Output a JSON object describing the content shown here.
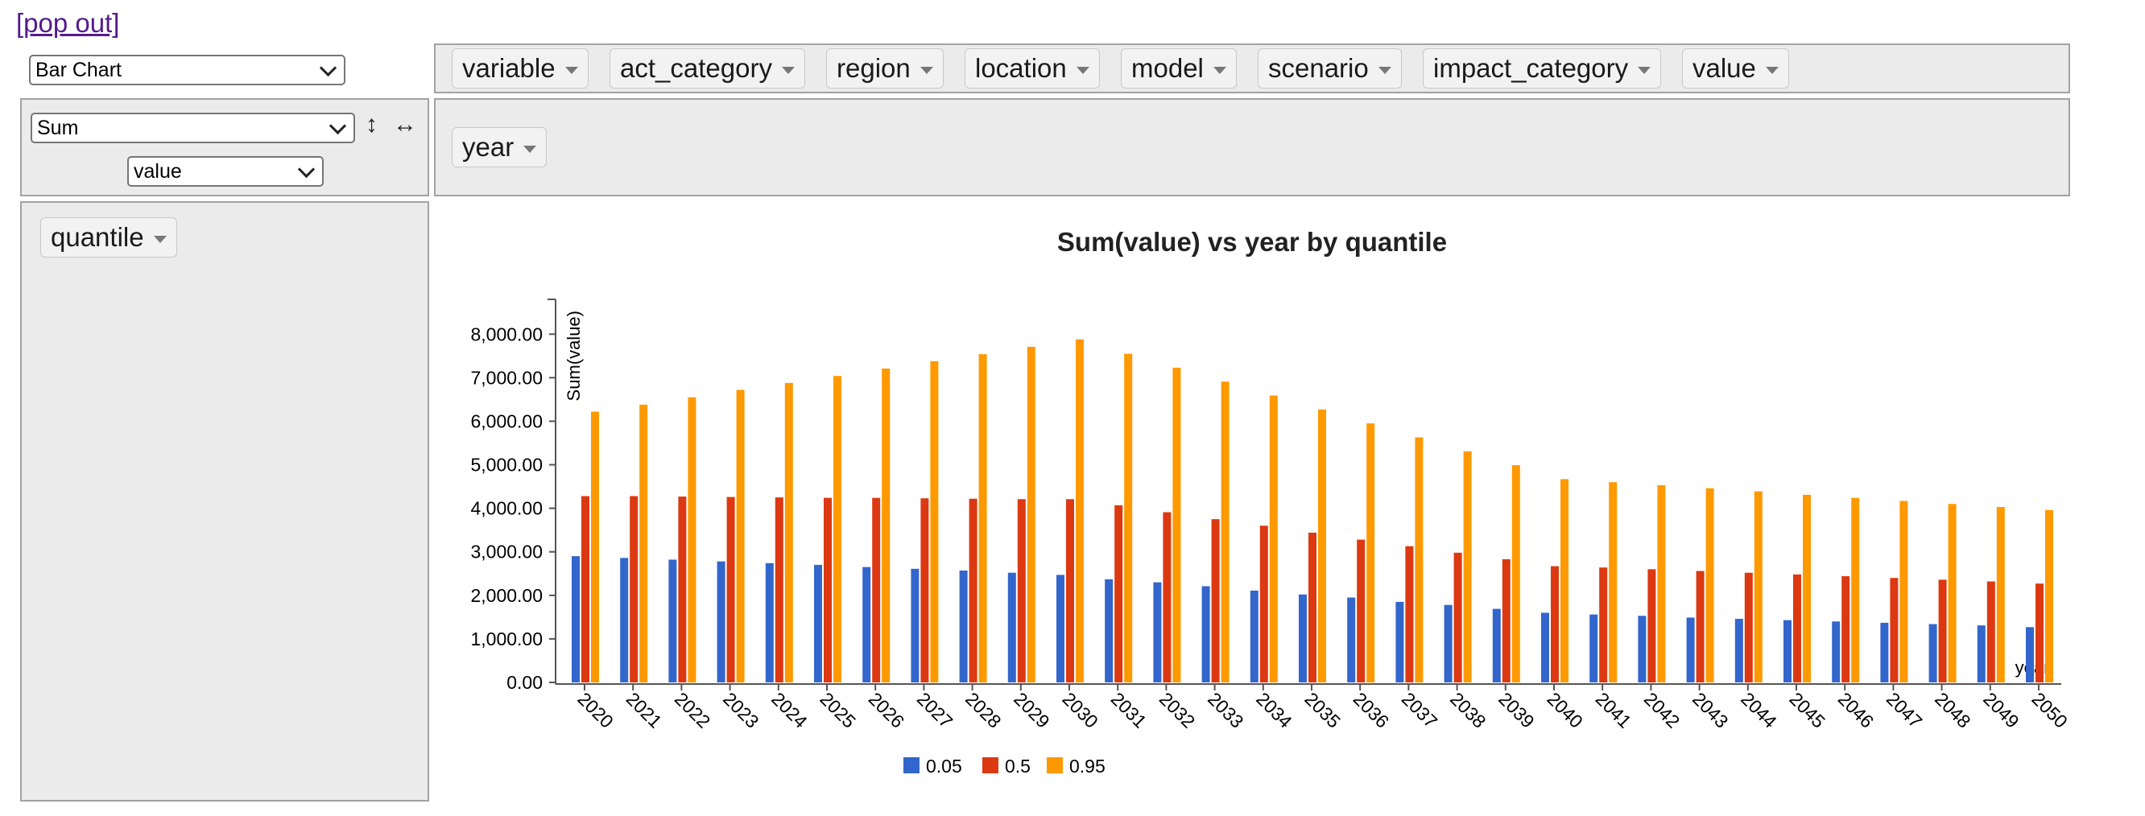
{
  "popout_label": "[pop out]",
  "renderer_select": {
    "value": "Bar Chart"
  },
  "aggregator_select": {
    "value": "Sum"
  },
  "attribute_select": {
    "value": "value"
  },
  "sort_rows_glyph": "↕",
  "sort_cols_glyph": "↔",
  "unused_attributes": [
    "variable",
    "act_category",
    "region",
    "location",
    "model",
    "scenario",
    "impact_category",
    "value"
  ],
  "column_attributes": [
    "year"
  ],
  "row_attributes": [
    "quantile"
  ],
  "colors": {
    "q05": "#3366cc",
    "q50": "#dc3912",
    "q95": "#ff9900",
    "panel": "#ebebeb"
  },
  "chart_data": {
    "type": "bar",
    "title": "Sum(value) vs year by quantile",
    "xlabel": "year",
    "ylabel": "Sum(value)",
    "ylim": [
      0,
      8800
    ],
    "yticks": [
      "0.00",
      "1,000.00",
      "2,000.00",
      "3,000.00",
      "4,000.00",
      "5,000.00",
      "6,000.00",
      "7,000.00",
      "8,000.00"
    ],
    "legend_position": "bottom",
    "grid": false,
    "categories": [
      "2020",
      "2021",
      "2022",
      "2023",
      "2024",
      "2025",
      "2026",
      "2027",
      "2028",
      "2029",
      "2030",
      "2031",
      "2032",
      "2033",
      "2034",
      "2035",
      "2036",
      "2037",
      "2038",
      "2039",
      "2040",
      "2041",
      "2042",
      "2043",
      "2044",
      "2045",
      "2046",
      "2047",
      "2048",
      "2049",
      "2050"
    ],
    "series": [
      {
        "name": "0.05",
        "values": [
          2900,
          2860,
          2820,
          2780,
          2740,
          2700,
          2650,
          2610,
          2570,
          2520,
          2470,
          2370,
          2300,
          2210,
          2110,
          2020,
          1950,
          1850,
          1780,
          1690,
          1600,
          1560,
          1530,
          1490,
          1460,
          1430,
          1400,
          1370,
          1340,
          1310,
          1270
        ]
      },
      {
        "name": "0.5",
        "values": [
          4280,
          4280,
          4270,
          4260,
          4250,
          4240,
          4240,
          4230,
          4220,
          4210,
          4210,
          4070,
          3910,
          3750,
          3600,
          3440,
          3280,
          3130,
          2980,
          2830,
          2670,
          2640,
          2600,
          2560,
          2520,
          2480,
          2440,
          2400,
          2360,
          2320,
          2270
        ]
      },
      {
        "name": "0.95",
        "values": [
          6220,
          6380,
          6550,
          6720,
          6880,
          7040,
          7210,
          7380,
          7540,
          7710,
          7880,
          7550,
          7230,
          6910,
          6590,
          6270,
          5950,
          5630,
          5310,
          4990,
          4670,
          4600,
          4530,
          4460,
          4390,
          4310,
          4240,
          4170,
          4100,
          4030,
          3960
        ]
      }
    ]
  }
}
